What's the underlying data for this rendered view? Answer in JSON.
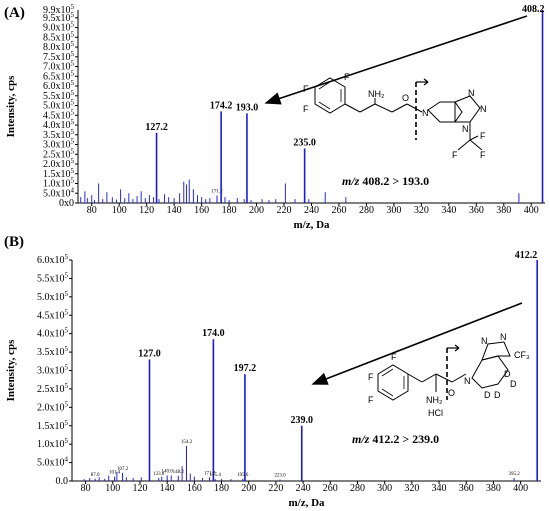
{
  "chart_data": [
    {
      "type": "bar",
      "panel_label": "(A)",
      "xlabel": "m/z, Da",
      "ylabel": "Intensity, cps",
      "xlim": [
        70,
        410
      ],
      "ylim": [
        0,
        990000
      ],
      "x_ticks": [
        80,
        100,
        120,
        140,
        160,
        180,
        200,
        220,
        240,
        260,
        280,
        300,
        320,
        340,
        360,
        380,
        400
      ],
      "y_ticks": [
        {
          "value": 0,
          "label": "0x0"
        },
        {
          "value": 50000,
          "label": "5.0x10"
        },
        {
          "value": 100000,
          "label": "1.0x10"
        },
        {
          "value": 150000,
          "label": "1.5x10"
        },
        {
          "value": 200000,
          "label": "2.0x10"
        },
        {
          "value": 250000,
          "label": "2.5x10"
        },
        {
          "value": 300000,
          "label": "3.0x10"
        },
        {
          "value": 350000,
          "label": "3.5x10"
        },
        {
          "value": 400000,
          "label": "4.0x10"
        },
        {
          "value": 450000,
          "label": "4.5x10"
        },
        {
          "value": 500000,
          "label": "5.0x10"
        },
        {
          "value": 550000,
          "label": "5.5x10"
        },
        {
          "value": 600000,
          "label": "6.0x10"
        },
        {
          "value": 650000,
          "label": "6.5x10"
        },
        {
          "value": 700000,
          "label": "7.0x10"
        },
        {
          "value": 750000,
          "label": "7.5x10"
        },
        {
          "value": 800000,
          "label": "8.0x10"
        },
        {
          "value": 850000,
          "label": "8.5x10"
        },
        {
          "value": 900000,
          "label": "9.0x10"
        },
        {
          "value": 950000,
          "label": "9.5x10"
        }
      ],
      "y_tick_exponent": "5",
      "y_tick_exponent_first": "4",
      "y_tick_top_label": "9.9x10",
      "y_tick_top_value": 990000,
      "peaks": [
        {
          "x": 127.2,
          "y": 360000,
          "label": "127.2"
        },
        {
          "x": 171.2,
          "y": 38000,
          "label": "171.2",
          "small": true
        },
        {
          "x": 174.2,
          "y": 470000,
          "label": "174.2"
        },
        {
          "x": 193.0,
          "y": 460000,
          "label": "193.0"
        },
        {
          "x": 235.0,
          "y": 280000,
          "label": "235.0"
        },
        {
          "x": 408.2,
          "y": 990000,
          "label": "408.2"
        }
      ],
      "minor_peaks": [
        [
          72,
          30000
        ],
        [
          75,
          60000
        ],
        [
          77,
          25000
        ],
        [
          80,
          40000
        ],
        [
          82,
          15000
        ],
        [
          85,
          100000
        ],
        [
          88,
          20000
        ],
        [
          91,
          55000
        ],
        [
          95,
          30000
        ],
        [
          98,
          18000
        ],
        [
          101,
          70000
        ],
        [
          104,
          25000
        ],
        [
          107,
          50000
        ],
        [
          110,
          20000
        ],
        [
          113,
          35000
        ],
        [
          116,
          60000
        ],
        [
          119,
          25000
        ],
        [
          122,
          40000
        ],
        [
          125,
          30000
        ],
        [
          129,
          20000
        ],
        [
          133,
          45000
        ],
        [
          136,
          30000
        ],
        [
          140,
          25000
        ],
        [
          144,
          50000
        ],
        [
          147,
          110000
        ],
        [
          149,
          95000
        ],
        [
          151,
          120000
        ],
        [
          154,
          70000
        ],
        [
          157,
          40000
        ],
        [
          160,
          30000
        ],
        [
          163,
          20000
        ],
        [
          166,
          25000
        ],
        [
          177,
          30000
        ],
        [
          180,
          15000
        ],
        [
          186,
          25000
        ],
        [
          191,
          20000
        ],
        [
          196,
          15000
        ],
        [
          204,
          20000
        ],
        [
          209,
          15000
        ],
        [
          214,
          20000
        ],
        [
          221,
          100000
        ],
        [
          228,
          20000
        ],
        [
          238,
          20000
        ],
        [
          250,
          55000
        ],
        [
          265,
          30000
        ],
        [
          391,
          50000
        ]
      ],
      "annotation": {
        "prefix": "m/z",
        "transition": "408.2 > 193.0"
      }
    },
    {
      "type": "bar",
      "panel_label": "(B)",
      "xlabel": "m/z, Da",
      "ylabel": "Intensity, cps",
      "xlim": [
        70,
        415
      ],
      "ylim": [
        0,
        600000
      ],
      "x_ticks": [
        80,
        100,
        120,
        140,
        160,
        180,
        200,
        220,
        240,
        260,
        280,
        300,
        320,
        340,
        360,
        380,
        400
      ],
      "y_ticks": [
        {
          "value": 0,
          "label": "0.0"
        },
        {
          "value": 50000,
          "label": "5.0x10"
        },
        {
          "value": 100000,
          "label": "1.0x10"
        },
        {
          "value": 150000,
          "label": "1.5x10"
        },
        {
          "value": 200000,
          "label": "2.0x10"
        },
        {
          "value": 250000,
          "label": "2.5x10"
        },
        {
          "value": 300000,
          "label": "3.0x10"
        },
        {
          "value": 350000,
          "label": "3.5x10"
        },
        {
          "value": 400000,
          "label": "4.0x10"
        },
        {
          "value": 450000,
          "label": "4.5x10"
        },
        {
          "value": 500000,
          "label": "5.0x10"
        },
        {
          "value": 550000,
          "label": "5.5x10"
        },
        {
          "value": 600000,
          "label": "6.0x10"
        }
      ],
      "y_tick_exponent": "5",
      "y_tick_exponent_first": "4",
      "peaks": [
        {
          "x": 127.0,
          "y": 330000,
          "label": "127.0"
        },
        {
          "x": 174.0,
          "y": 385000,
          "label": "174.0"
        },
        {
          "x": 197.2,
          "y": 290000,
          "label": "197.2"
        },
        {
          "x": 239.0,
          "y": 150000,
          "label": "239.0"
        },
        {
          "x": 412.2,
          "y": 600000,
          "label": "412.2"
        },
        {
          "x": 87.0,
          "y": 6000,
          "label": "87.0",
          "small": true
        },
        {
          "x": 101.4,
          "y": 12000,
          "label": "101.4",
          "small": true
        },
        {
          "x": 107.2,
          "y": 22000,
          "label": "107.2",
          "small": true
        },
        {
          "x": 133.8,
          "y": 8000,
          "label": "133.8",
          "small": true
        },
        {
          "x": 140.0,
          "y": 15000,
          "label": "140.0",
          "small": true
        },
        {
          "x": 148.2,
          "y": 14000,
          "label": "148.2",
          "small": true
        },
        {
          "x": 154.2,
          "y": 95000,
          "label": "154.2",
          "small": true
        },
        {
          "x": 171.2,
          "y": 10000,
          "label": "171.2",
          "small": true
        },
        {
          "x": 175.4,
          "y": 5000,
          "label": "175.4",
          "small": true
        },
        {
          "x": 195.6,
          "y": 6000,
          "label": "195.6",
          "small": true
        },
        {
          "x": 223.0,
          "y": 4000,
          "label": "223.0",
          "small": true
        },
        {
          "x": 395.2,
          "y": 8000,
          "label": "395.2",
          "small": true
        }
      ],
      "minor_peaks": [
        [
          79,
          5000
        ],
        [
          83,
          8000
        ],
        [
          90,
          10000
        ],
        [
          94,
          6000
        ],
        [
          97,
          15000
        ],
        [
          103,
          25000
        ],
        [
          110,
          10000
        ],
        [
          115,
          8000
        ],
        [
          121,
          10000
        ],
        [
          136,
          12000
        ],
        [
          143,
          15000
        ],
        [
          151,
          40000
        ],
        [
          157,
          20000
        ],
        [
          160,
          12000
        ],
        [
          166,
          8000
        ],
        [
          180,
          6000
        ],
        [
          187,
          5000
        ]
      ],
      "annotation": {
        "prefix": "m/z",
        "transition": "412.2 > 239.0"
      }
    }
  ]
}
